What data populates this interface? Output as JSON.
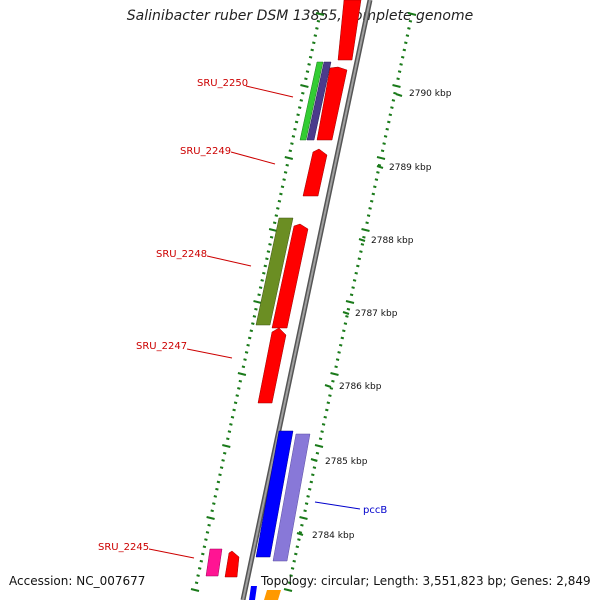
{
  "title": "Salinibacter ruber DSM 13855, complete genome",
  "accession": "Accession: NC_007677",
  "topology": "Topology: circular; Length: 3,551,823 bp; Genes: 2,849",
  "colors": {
    "backbone": "#808080",
    "tick": "#1a7a1a",
    "gene_red": "#ff0000",
    "green": "#33cc33",
    "purple": "#4b3b8c",
    "olive": "#6b8e23",
    "blue": "#0000ff",
    "lavender": "#8878d8",
    "pink": "#ff1493",
    "orange": "#ff9900",
    "label_red": "#cc0000",
    "label_blue": "#0000cc"
  },
  "gene_labels": [
    {
      "id": "sru2250",
      "text": "SRU_2250"
    },
    {
      "id": "sru2249",
      "text": "SRU_2249"
    },
    {
      "id": "sru2248",
      "text": "SRU_2248"
    },
    {
      "id": "sru2247",
      "text": "SRU_2247"
    },
    {
      "id": "sru2245",
      "text": "SRU_2245"
    },
    {
      "id": "pccb",
      "text": "pccB"
    }
  ],
  "kbp_labels": [
    {
      "id": "k2790",
      "text": "2790 kbp"
    },
    {
      "id": "k2789",
      "text": "2789 kbp"
    },
    {
      "id": "k2788",
      "text": "2788 kbp"
    },
    {
      "id": "k2787",
      "text": "2787 kbp"
    },
    {
      "id": "k2786",
      "text": "2786 kbp"
    },
    {
      "id": "k2785",
      "text": "2785 kbp"
    },
    {
      "id": "k2784",
      "text": "2784 kbp"
    }
  ]
}
